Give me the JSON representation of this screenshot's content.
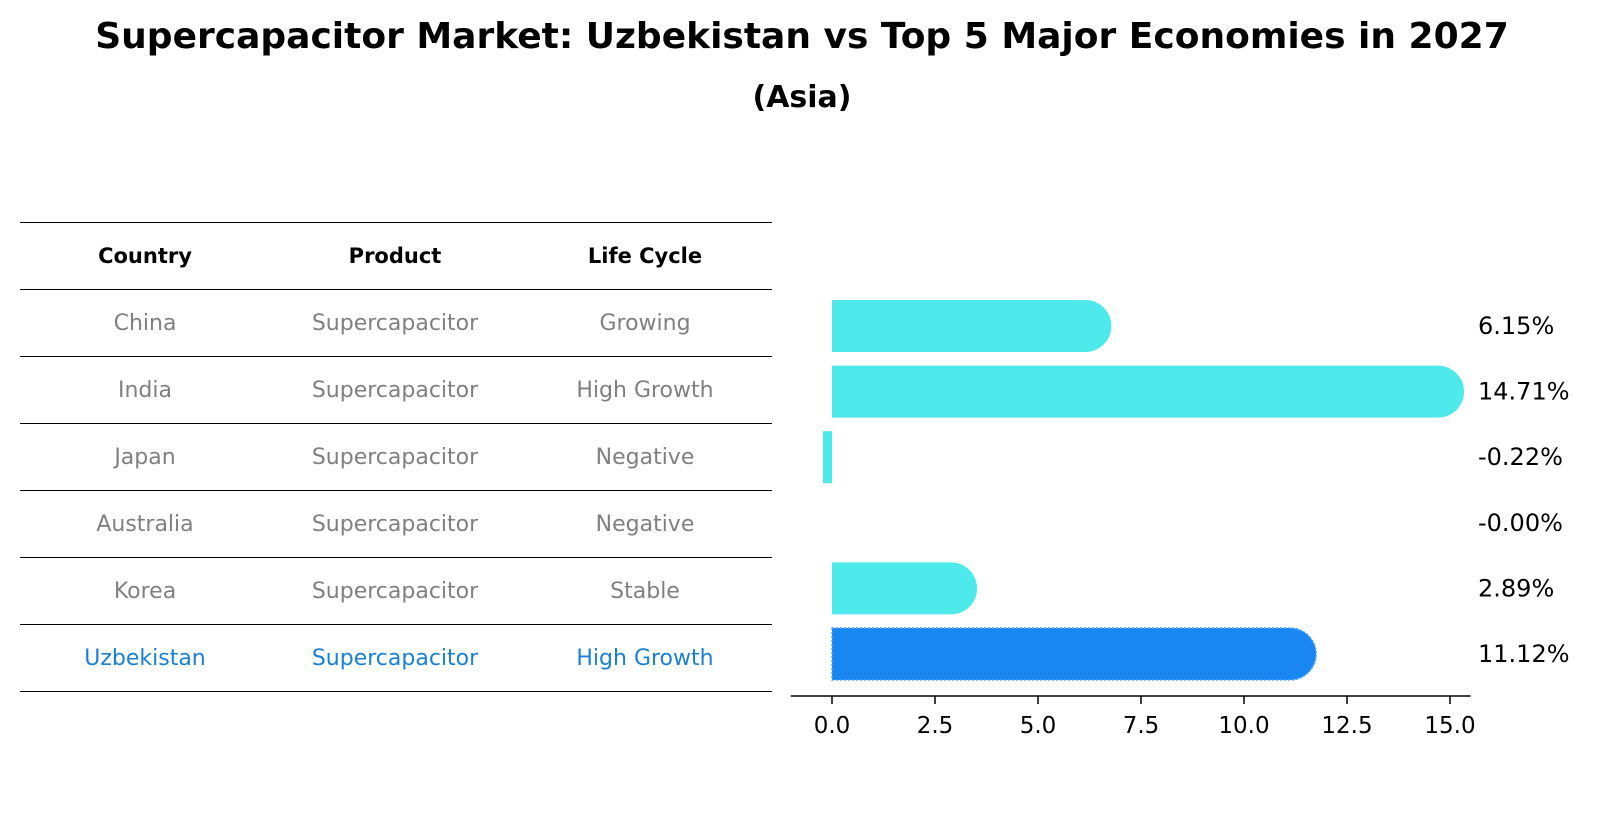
{
  "chart_title": "Supercapacitor Market: Uzbekistan vs Top 5 Major Economies in 2027",
  "chart_subtitle": "(Asia)",
  "table": {
    "headers": [
      "Country",
      "Product",
      "Life Cycle"
    ],
    "rows": [
      [
        "China",
        "Supercapacitor",
        "Growing"
      ],
      [
        "India",
        "Supercapacitor",
        "High Growth"
      ],
      [
        "Japan",
        "Supercapacitor",
        "Negative"
      ],
      [
        "Australia",
        "Supercapacitor",
        "Negative"
      ],
      [
        "Korea",
        "Supercapacitor",
        "Stable"
      ],
      [
        "Uzbekistan",
        "Supercapacitor",
        "High Growth"
      ]
    ],
    "highlight_row": 5
  },
  "colors": {
    "bar": "#4ee9ea",
    "highlight": "#1a86f2",
    "highlight_text": "#1a80d4"
  },
  "chart_data": {
    "type": "bar",
    "orientation": "horizontal",
    "categories": [
      "China",
      "India",
      "Japan",
      "Australia",
      "Korea",
      "Uzbekistan"
    ],
    "values": [
      6.15,
      14.71,
      -0.22,
      -0.0,
      2.89,
      11.12
    ],
    "value_labels": [
      "6.15%",
      "14.71%",
      "-0.22%",
      "-0.00%",
      "2.89%",
      "11.12%"
    ],
    "xlim": [
      -1.0,
      15.5
    ],
    "xticks": [
      0.0,
      2.5,
      5.0,
      7.5,
      10.0,
      12.5,
      15.0
    ],
    "xtick_labels": [
      "0.0",
      "2.5",
      "5.0",
      "7.5",
      "10.0",
      "12.5",
      "15.0"
    ],
    "highlight": "Uzbekistan"
  }
}
